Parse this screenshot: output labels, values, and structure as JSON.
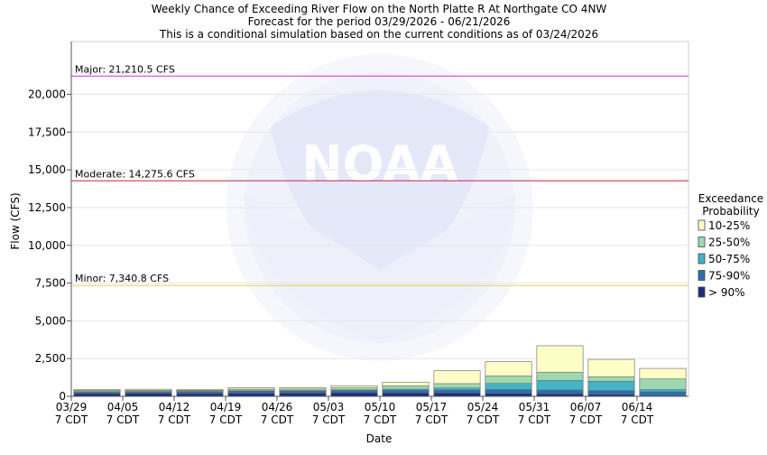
{
  "chart_data": {
    "type": "bar",
    "title": [
      "Weekly Chance of Exceeding River Flow on the North Platte R At Northgate CO 4NW",
      "Forecast for the period 03/29/2026 - 06/21/2026",
      "This is a conditional simulation based on the current conditions as of 03/24/2026"
    ],
    "xlabel": "Date",
    "ylabel": "Flow (CFS)",
    "ylim": [
      0,
      23500
    ],
    "yticks": [
      0,
      2500,
      5000,
      7500,
      10000,
      12500,
      15000,
      17500,
      20000
    ],
    "ytick_labels": [
      "0",
      "2,500",
      "5,000",
      "7,500",
      "10,000",
      "12,500",
      "15,000",
      "17,500",
      "20,000"
    ],
    "categories": [
      "03/29",
      "04/05",
      "04/12",
      "04/19",
      "04/26",
      "05/03",
      "05/10",
      "05/17",
      "05/24",
      "05/31",
      "06/07",
      "06/14"
    ],
    "xtick_sublabel": "7 CDT",
    "thresholds": [
      {
        "label": "Major: 21,210.5 CFS",
        "value": 21210.5,
        "color": "#cc33cc"
      },
      {
        "label": "Moderate: 14,275.6 CFS",
        "value": 14275.6,
        "color": "#cc2244"
      },
      {
        "label": "Minor: 7,340.8 CFS",
        "value": 7340.8,
        "color": "#e8d44a"
      }
    ],
    "legend": {
      "title": [
        "Exceedance",
        "Probability"
      ],
      "placement": "right"
    },
    "series": [
      {
        "name": "> 90%",
        "color": "#1f2d7a",
        "values": [
          180,
          190,
          180,
          200,
          210,
          240,
          230,
          220,
          190,
          170,
          120,
          40
        ]
      },
      {
        "name": "75-90%",
        "color": "#2b6fb0",
        "values": [
          270,
          290,
          300,
          340,
          350,
          380,
          400,
          420,
          450,
          420,
          380,
          300
        ]
      },
      {
        "name": "50-75%",
        "color": "#45b3c4",
        "values": [
          310,
          320,
          330,
          370,
          380,
          430,
          480,
          550,
          850,
          1050,
          1000,
          450
        ]
      },
      {
        "name": "25-50%",
        "color": "#9fd8b0",
        "values": [
          390,
          400,
          400,
          470,
          480,
          560,
          690,
          840,
          1350,
          1600,
          1300,
          1150
        ]
      },
      {
        "name": "10-25%",
        "color": "#fdfdc8",
        "values": [
          460,
          470,
          460,
          580,
          580,
          700,
          940,
          1700,
          2300,
          3350,
          2450,
          1850
        ]
      }
    ]
  }
}
